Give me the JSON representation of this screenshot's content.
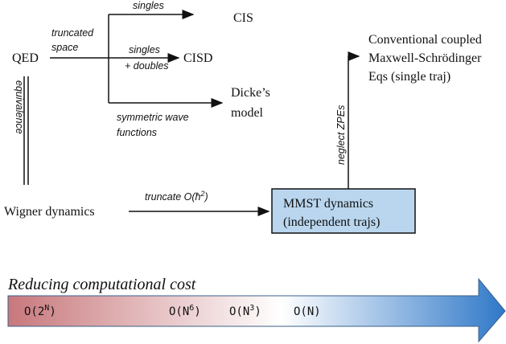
{
  "nodes": {
    "qed": "QED",
    "cis": "CIS",
    "cisd": "CISD",
    "dicke": [
      "Dicke’s",
      "model"
    ],
    "wigner": "Wigner dynamics",
    "mmst": [
      "MMST dynamics",
      "(independent trajs)"
    ],
    "conventional": [
      "Conventional coupled",
      "Maxwell-Schrödinger",
      "Eqs (single traj)"
    ]
  },
  "edges": {
    "truncated_space": [
      "truncated",
      "space"
    ],
    "singles": "singles",
    "singles_doubles": [
      "singles",
      "+ doubles"
    ],
    "symmetric": [
      "symmetric wave",
      "functions"
    ],
    "equivalence": "equivalence",
    "truncate": {
      "text": "truncate O(ħ",
      "sup": "2",
      "tail": ")"
    },
    "neglect": "neglect ZPEs"
  },
  "cost_bar": {
    "title": "Reducing computational cost",
    "labels": [
      {
        "text": "O(2",
        "sup": "N",
        "tail": ")"
      },
      {
        "text": "O(N",
        "sup": "6",
        "tail": ")"
      },
      {
        "text": "O(N",
        "sup": "3",
        "tail": ")"
      },
      {
        "text": "O(N)"
      }
    ]
  }
}
